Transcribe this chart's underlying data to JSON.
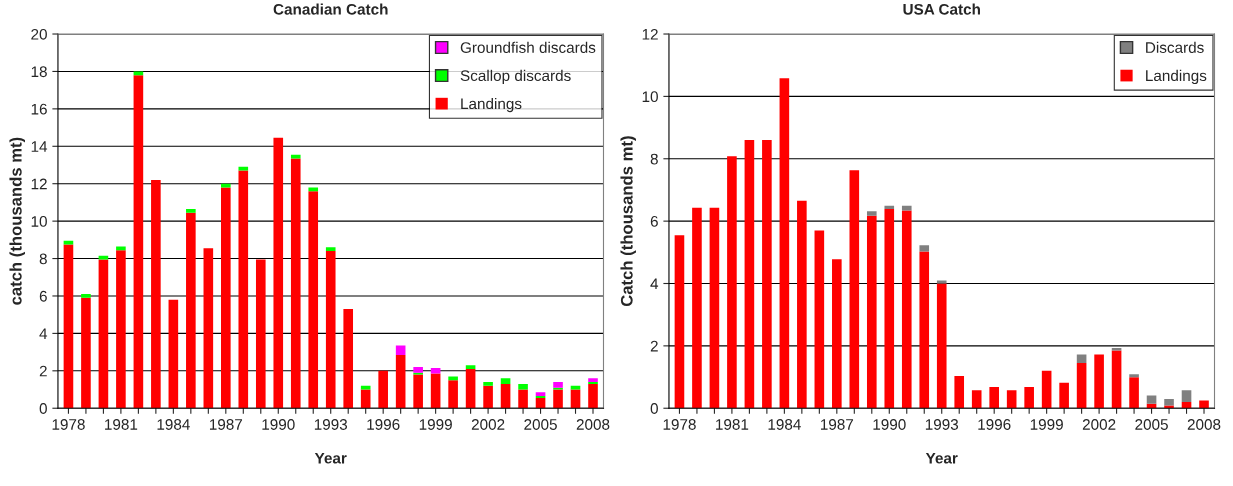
{
  "chart_data": [
    {
      "type": "bar",
      "stacked": true,
      "title": "Canadian Catch",
      "xlabel": "Year",
      "ylabel": "catch (thousands mt)",
      "categories": [
        "1978",
        null,
        null,
        "1981",
        null,
        null,
        "1984",
        null,
        null,
        "1987",
        null,
        null,
        "1990",
        null,
        null,
        "1993",
        null,
        null,
        "1996",
        null,
        null,
        "1999",
        null,
        null,
        "2002",
        null,
        null,
        "2005",
        null,
        null,
        "2008"
      ],
      "series": [
        {
          "name": "Landings",
          "color": "#ff0000",
          "values": [
            8.75,
            5.9,
            7.95,
            8.45,
            17.8,
            12.2,
            5.8,
            10.45,
            8.55,
            11.8,
            12.7,
            7.95,
            14.45,
            13.35,
            11.6,
            8.4,
            5.3,
            1.0,
            2.0,
            2.85,
            1.8,
            1.85,
            1.5,
            2.1,
            1.2,
            1.3,
            1.0,
            0.55,
            1.0,
            1.0,
            1.3
          ]
        },
        {
          "name": "Scallop discards",
          "color": "#00ff00",
          "values": [
            0.2,
            0.2,
            0.2,
            0.2,
            0.2,
            0,
            0,
            0.2,
            0,
            0.2,
            0.2,
            0,
            0,
            0.2,
            0.2,
            0.2,
            0,
            0.2,
            0,
            0,
            0.1,
            0,
            0.2,
            0.2,
            0.2,
            0.3,
            0.3,
            0.1,
            0.1,
            0.2,
            0.1
          ]
        },
        {
          "name": "Groundfish discards",
          "color": "#ff00ff",
          "values": [
            0,
            0,
            0,
            0,
            0,
            0,
            0,
            0,
            0,
            0,
            0,
            0,
            0,
            0,
            0,
            0,
            0,
            0,
            0,
            0.5,
            0.3,
            0.3,
            0,
            0,
            0,
            0,
            0,
            0.2,
            0.3,
            0,
            0.2
          ]
        }
      ],
      "ylim": [
        0,
        20
      ],
      "yticks": [
        0,
        2,
        4,
        6,
        8,
        10,
        12,
        14,
        16,
        18,
        20
      ],
      "grid": "y",
      "legend": "top right"
    },
    {
      "type": "bar",
      "stacked": true,
      "title": "USA Catch",
      "xlabel": "Year",
      "ylabel": "Catch (thousands mt)",
      "categories": [
        "1978",
        null,
        null,
        "1981",
        null,
        null,
        "1984",
        null,
        null,
        "1987",
        null,
        null,
        "1990",
        null,
        null,
        "1993",
        null,
        null,
        "1996",
        null,
        null,
        "1999",
        null,
        null,
        "2002",
        null,
        null,
        "2005",
        null,
        null,
        "2008"
      ],
      "series": [
        {
          "name": "Landings",
          "color": "#ff0000",
          "values": [
            5.55,
            6.43,
            6.43,
            8.08,
            8.6,
            8.6,
            10.58,
            6.65,
            5.7,
            4.78,
            7.63,
            6.17,
            6.39,
            6.34,
            5.03,
            4.0,
            1.03,
            0.58,
            0.68,
            0.58,
            0.68,
            1.2,
            0.82,
            1.45,
            1.72,
            1.85,
            0.99,
            0.14,
            0.09,
            0.2,
            0.25
          ]
        },
        {
          "name": "Discards",
          "color": "#808080",
          "values": [
            0,
            0,
            0,
            0,
            0,
            0,
            0,
            0,
            0,
            0,
            0,
            0.15,
            0.1,
            0.15,
            0.2,
            0.1,
            0,
            0,
            0,
            0,
            0,
            0,
            0,
            0.27,
            0,
            0.08,
            0.1,
            0.27,
            0.21,
            0.38,
            0
          ]
        }
      ],
      "ylim": [
        0,
        12
      ],
      "yticks": [
        0,
        2,
        4,
        6,
        8,
        10,
        12
      ],
      "grid": "y",
      "legend": "top right"
    }
  ]
}
